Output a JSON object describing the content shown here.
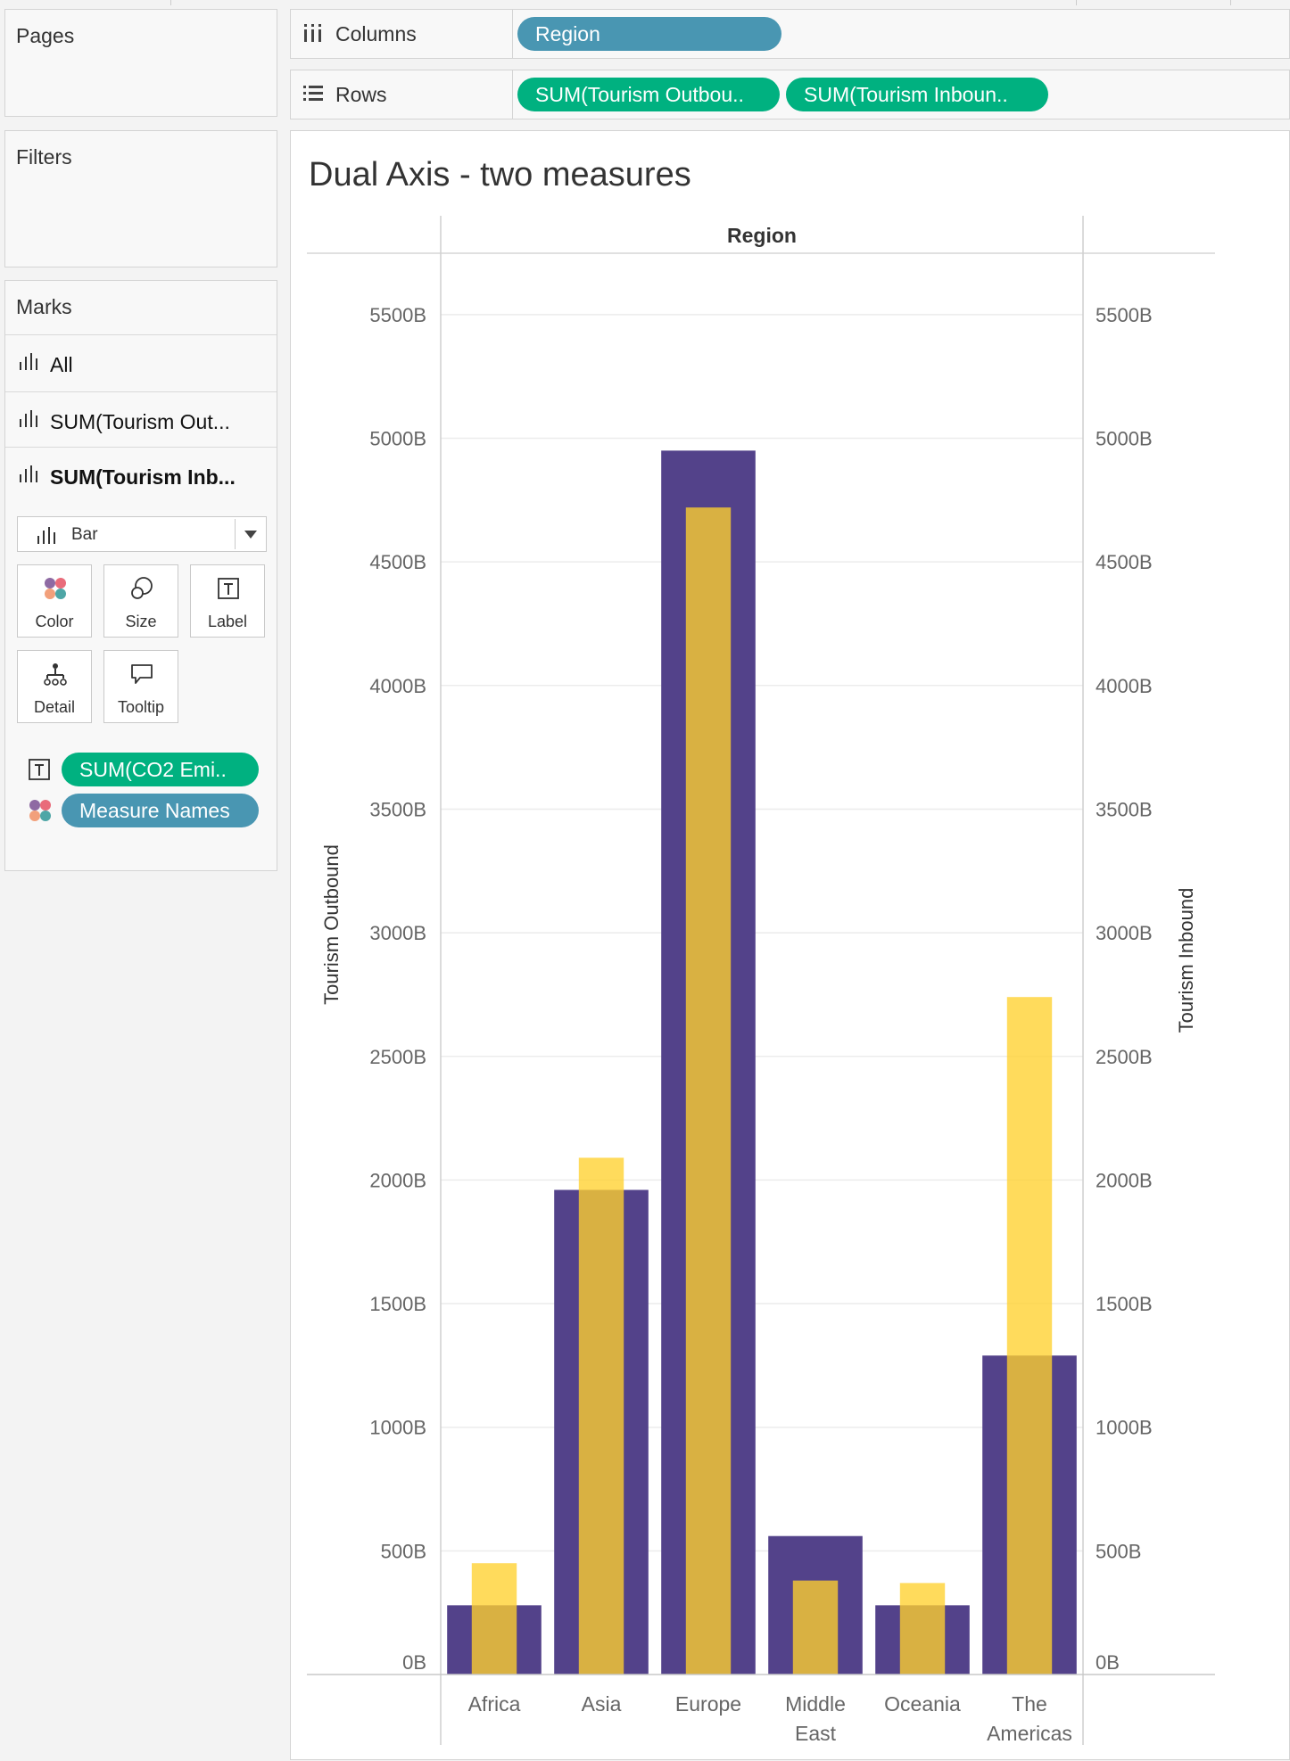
{
  "sidebar": {
    "pages_title": "Pages",
    "filters_title": "Filters",
    "marks_title": "Marks",
    "mark_rows": [
      {
        "label": "All",
        "bold": false
      },
      {
        "label": "SUM(Tourism Out...",
        "bold": false
      },
      {
        "label": "SUM(Tourism Inb...",
        "bold": true
      }
    ],
    "mark_type": "Bar",
    "cards": [
      "Color",
      "Size",
      "Label",
      "Detail",
      "Tooltip"
    ],
    "mark_pills": [
      {
        "icon": "label-icon",
        "label": "SUM(CO2 Emi..",
        "color": "#00b180"
      },
      {
        "icon": "color-icon",
        "label": "Measure Names",
        "color": "#4996b2"
      }
    ]
  },
  "shelves": {
    "columns_label": "Columns",
    "rows_label": "Rows",
    "columns_pills": [
      "Region"
    ],
    "rows_pills": [
      "SUM(Tourism Outbou..",
      "SUM(Tourism Inboun.."
    ]
  },
  "view": {
    "title": "Dual Axis - two measures"
  },
  "chart_data": {
    "type": "bar",
    "title": "Dual Axis - two measures",
    "header": "Region",
    "categories": [
      "Africa",
      "Asia",
      "Europe",
      "Middle East",
      "Oceania",
      "The Americas"
    ],
    "series": [
      {
        "name": "Tourism Outbound",
        "axis": "left",
        "color": "#53428a",
        "values": [
          280,
          1960,
          4950,
          560,
          280,
          1290
        ]
      },
      {
        "name": "Tourism Inbound",
        "axis": "right",
        "color": "#ffd12e",
        "values": [
          450,
          2090,
          4720,
          380,
          370,
          2740
        ]
      }
    ],
    "ylabel": "Tourism Outbound",
    "y2label": "Tourism Inbound",
    "ylim": [
      0,
      5700
    ],
    "ticks": [
      0,
      500,
      1000,
      1500,
      2000,
      2500,
      3000,
      3500,
      4000,
      4500,
      5000,
      5500
    ],
    "tick_labels": [
      "0B",
      "500B",
      "1000B",
      "1500B",
      "2000B",
      "2500B",
      "3000B",
      "3500B",
      "4000B",
      "4500B",
      "5000B",
      "5500B"
    ],
    "grid": true,
    "overlap": "dual-axis"
  }
}
